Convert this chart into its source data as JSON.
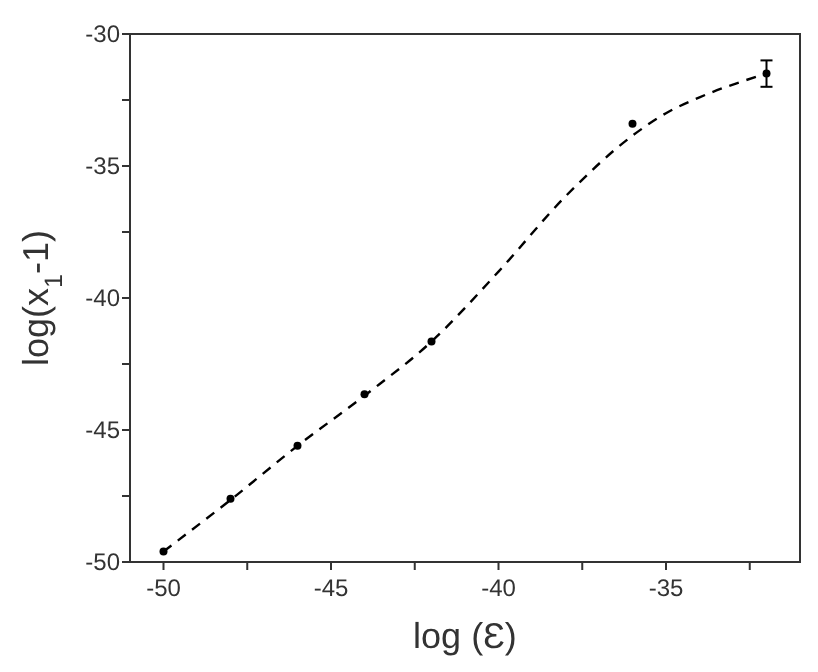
{
  "chart_data": {
    "type": "scatter",
    "xlabel": "log (Ɛ)",
    "ylabel": "log(x$_{1}$-1)",
    "xlim": [
      -51,
      -31
    ],
    "ylim": [
      -50,
      -30
    ],
    "xticks": [
      -50,
      {
        "value": -47.5,
        "label": null
      },
      -45,
      {
        "value": -42.5,
        "label": null
      },
      -40,
      {
        "value": -37.5,
        "label": null
      },
      -35,
      {
        "value": -32.5,
        "label": null
      }
    ],
    "yticks": [
      -50,
      {
        "value": -47.5,
        "label": null
      },
      -45,
      {
        "value": -42.5,
        "label": null
      },
      -40,
      {
        "value": -37.5,
        "label": null
      },
      -35,
      {
        "value": -32.5,
        "label": null
      },
      -30
    ],
    "grid": false,
    "series": [
      {
        "color": "#000000",
        "marker": "circle",
        "x": [
          -50,
          -48,
          -46,
          -44,
          -42,
          -36,
          -32
        ],
        "values": [
          -49.6,
          -47.6,
          -45.6,
          -43.65,
          -41.65,
          -33.4,
          -31.5
        ],
        "errors": [
          null,
          null,
          null,
          null,
          null,
          null,
          0.5
        ]
      },
      {
        "type": "line",
        "color": "#000000",
        "line_style": "dashed",
        "x": [
          -50,
          -48,
          -46,
          -44,
          -42,
          -40,
          -38,
          -36,
          -35,
          -34,
          -32
        ],
        "values": [
          -49.6,
          -47.65,
          -45.6,
          -43.7,
          -41.65,
          -39.0,
          -36.15,
          -33.85,
          -33.0,
          -32.4,
          -31.5
        ]
      }
    ]
  }
}
